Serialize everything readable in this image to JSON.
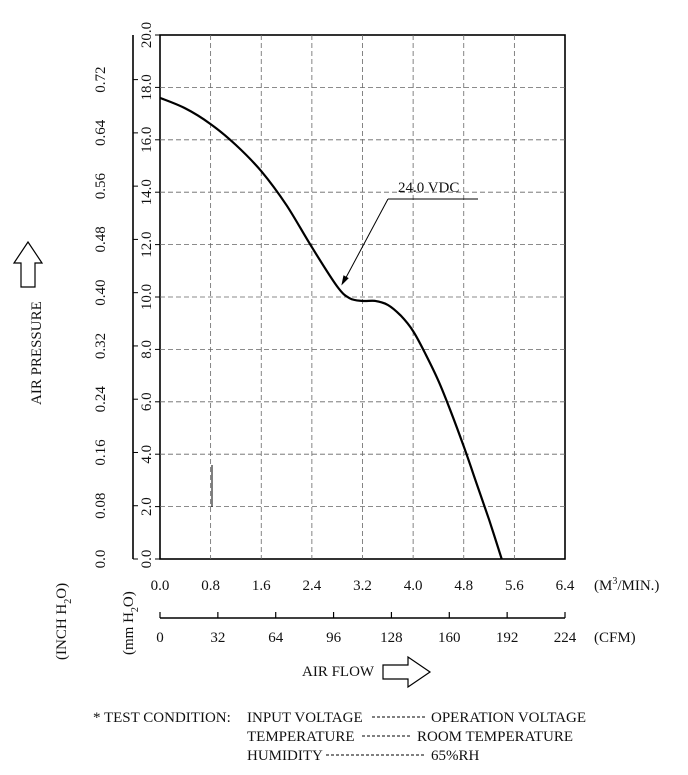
{
  "chart_data": {
    "type": "line",
    "ylabel": "AIR PRESSURE",
    "xlabel": "AIR FLOW",
    "x_primary": {
      "unit_label": "(M",
      "unit_sup": "3",
      "unit_tail": "/MIN.)",
      "ticks": [
        "0.0",
        "0.8",
        "1.6",
        "2.4",
        "3.2",
        "4.0",
        "4.8",
        "5.6",
        "6.4"
      ],
      "range": [
        0.0,
        6.4
      ]
    },
    "x_secondary": {
      "unit_label": "(CFM)",
      "ticks": [
        "0",
        "32",
        "64",
        "96",
        "128",
        "160",
        "192",
        "224"
      ],
      "range": [
        0,
        224
      ]
    },
    "y_primary": {
      "unit_pre": "(mm H",
      "unit_sub": "2",
      "unit_post": "O)",
      "ticks": [
        "0.0",
        "2.0",
        "4.0",
        "6.0",
        "8.0",
        "10.0",
        "12.0",
        "14.0",
        "16.0",
        "18.0",
        "20.0"
      ],
      "range": [
        0.0,
        20.0
      ]
    },
    "y_secondary": {
      "unit_pre": "(INCH H",
      "unit_sub": "2",
      "unit_post": "O)",
      "ticks": [
        "0.0",
        "0.08",
        "0.16",
        "0.24",
        "0.32",
        "0.40",
        "0.48",
        "0.56",
        "0.64",
        "0.72"
      ],
      "values": [
        0.0,
        0.08,
        0.16,
        0.24,
        0.32,
        0.4,
        0.48,
        0.56,
        0.64,
        0.72
      ],
      "range_max": 0.787
    },
    "grid": true,
    "series": [
      {
        "name": "24.0 VDC",
        "x": [
          0.0,
          0.4,
          0.8,
          1.2,
          1.6,
          2.0,
          2.4,
          2.8,
          3.0,
          3.2,
          3.4,
          3.6,
          3.8,
          4.0,
          4.2,
          4.4,
          4.6,
          4.8,
          5.0,
          5.2,
          5.4
        ],
        "y": [
          17.6,
          17.2,
          16.6,
          15.8,
          14.8,
          13.5,
          11.9,
          10.4,
          9.95,
          9.85,
          9.85,
          9.7,
          9.3,
          8.7,
          7.8,
          6.8,
          5.6,
          4.3,
          2.9,
          1.5,
          0.0
        ]
      }
    ],
    "annotation": {
      "text": "24.0 VDC",
      "points_to": [
        2.85,
        10.4
      ]
    }
  },
  "test_condition": {
    "prefix": "* TEST CONDITION:",
    "rows": [
      {
        "label": "INPUT VOLTAGE",
        "value": "OPERATION VOLTAGE"
      },
      {
        "label": "TEMPERATURE",
        "value": "ROOM TEMPERATURE"
      },
      {
        "label": "HUMIDITY",
        "value": "65%RH"
      }
    ]
  }
}
